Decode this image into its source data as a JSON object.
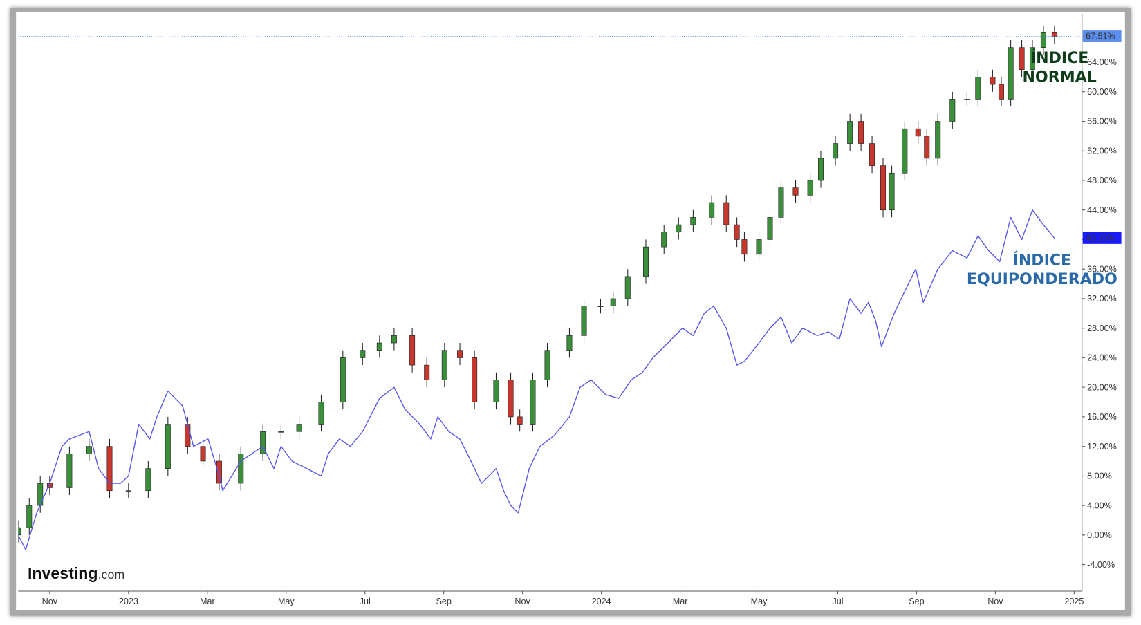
{
  "chart_data": {
    "type": "candlestick-line",
    "logo": {
      "name": "Investing",
      "suffix": ".com"
    },
    "xlim": [
      -0.8,
      26.2
    ],
    "xticks": [
      {
        "value": 0,
        "label": "Nov"
      },
      {
        "value": 2,
        "label": "2023"
      },
      {
        "value": 4,
        "label": "Mar"
      },
      {
        "value": 6,
        "label": "May"
      },
      {
        "value": 8,
        "label": "Jul"
      },
      {
        "value": 10,
        "label": "Sep"
      },
      {
        "value": 12,
        "label": "Nov"
      },
      {
        "value": 14,
        "label": "2024"
      },
      {
        "value": 16,
        "label": "Mar"
      },
      {
        "value": 18,
        "label": "May"
      },
      {
        "value": 20,
        "label": "Jul"
      },
      {
        "value": 22,
        "label": "Sep"
      },
      {
        "value": 24,
        "label": "Nov"
      },
      {
        "value": 26,
        "label": "2025"
      }
    ],
    "ylim": [
      -7.6,
      70.6
    ],
    "yticks": [
      {
        "value": -4,
        "label": "-4.00%"
      },
      {
        "value": 0,
        "label": "0.00%"
      },
      {
        "value": 4,
        "label": "4.00%"
      },
      {
        "value": 8,
        "label": "8.00%"
      },
      {
        "value": 12,
        "label": "12.00%"
      },
      {
        "value": 16,
        "label": "16.00%"
      },
      {
        "value": 20,
        "label": "20.00%"
      },
      {
        "value": 24,
        "label": "24.00%"
      },
      {
        "value": 28,
        "label": "28.00%"
      },
      {
        "value": 32,
        "label": "32.00%"
      },
      {
        "value": 36,
        "label": "36.00%"
      },
      {
        "value": 40,
        "label": "40.00%"
      },
      {
        "value": 44,
        "label": "44.00%"
      },
      {
        "value": 48,
        "label": "48.00%"
      },
      {
        "value": 52,
        "label": "52.00%"
      },
      {
        "value": 56,
        "label": "56.00%"
      },
      {
        "value": 60,
        "label": "60.00%"
      },
      {
        "value": 64,
        "label": "64.00%"
      }
    ],
    "series": [
      {
        "name": "ÍNDICE NORMAL",
        "type": "candlestick",
        "up_color": "#3b8f3b",
        "down_color": "#c8372d",
        "label_color": "#0f3d1a",
        "badge_color": "#5b8def",
        "last_value": {
          "value": 67.51,
          "label": "67.51%"
        },
        "x": [
          -0.8,
          -0.52,
          -0.24,
          0,
          0.5,
          1,
          1.52,
          2,
          2.5,
          3,
          3.5,
          3.89,
          4.3,
          4.85,
          5.41,
          5.87,
          6.33,
          6.89,
          7.44,
          7.94,
          8.37,
          8.74,
          9.2,
          9.57,
          10.02,
          10.41,
          10.78,
          11.33,
          11.7,
          11.93,
          12.26,
          12.63,
          13.19,
          13.56,
          13.98,
          14.3,
          14.67,
          15.13,
          15.59,
          15.96,
          16.33,
          16.8,
          17.17,
          17.44,
          17.63,
          18,
          18.28,
          18.56,
          18.93,
          19.3,
          19.57,
          19.94,
          20.31,
          20.59,
          20.87,
          21.15,
          21.37,
          21.7,
          22.04,
          22.26,
          22.54,
          22.91,
          23.28,
          23.56,
          23.93,
          24.15,
          24.39,
          24.67,
          24.94,
          25.22,
          25.5
        ],
        "open": [
          0,
          1,
          4,
          7,
          6.4,
          11,
          12,
          6,
          6,
          9,
          15,
          12,
          10,
          7,
          11,
          14,
          14,
          15,
          18,
          24,
          25,
          26,
          27,
          23,
          21,
          25,
          24,
          18,
          21,
          16,
          15,
          21,
          25,
          27,
          31,
          31,
          32,
          35,
          39,
          41,
          42,
          43,
          45,
          42,
          40,
          38,
          40,
          43,
          47,
          46,
          48,
          51,
          53,
          56,
          53,
          50,
          44,
          49,
          55,
          54,
          51,
          56,
          59,
          59,
          62,
          61,
          59,
          66,
          63,
          66,
          68
        ],
        "high": [
          2,
          5,
          8,
          8,
          12,
          13,
          13,
          7,
          10,
          16,
          16,
          13,
          11,
          12,
          15,
          15,
          16,
          19,
          25,
          26,
          27,
          28,
          28,
          24,
          26,
          26,
          25,
          22,
          22,
          17,
          22,
          26,
          28,
          32,
          32,
          33,
          36,
          40,
          42,
          43,
          44,
          46,
          46,
          43,
          41,
          41,
          44,
          48,
          48,
          49,
          52,
          54,
          57,
          57,
          54,
          51,
          50,
          56,
          56,
          55,
          57,
          60,
          60,
          63,
          63,
          62,
          67,
          67,
          67,
          69,
          69
        ],
        "low": [
          -1,
          0,
          3,
          5.4,
          5.4,
          10,
          5,
          5,
          5,
          8,
          11,
          9,
          6,
          6,
          10,
          13,
          13,
          14,
          17,
          23,
          24,
          25,
          22,
          20,
          20,
          23,
          17,
          17,
          15,
          14,
          14,
          20,
          24,
          26,
          30,
          30,
          31,
          34,
          38,
          40,
          41,
          42,
          41,
          39,
          37,
          37,
          39,
          42,
          45,
          45,
          47,
          50,
          52,
          52,
          49,
          43,
          43,
          48,
          53,
          50,
          50,
          55,
          58,
          58,
          60,
          58,
          58,
          62,
          62,
          65,
          66.51
        ],
        "close": [
          1,
          4,
          7,
          6.4,
          11,
          12,
          6,
          6,
          9,
          15,
          12,
          10,
          7,
          11,
          14,
          14,
          15,
          18,
          24,
          25,
          26,
          27,
          23,
          21,
          25,
          24,
          18,
          21,
          16,
          15,
          21,
          25,
          27,
          31,
          31,
          32,
          35,
          39,
          41,
          42,
          43,
          45,
          42,
          40,
          38,
          40,
          43,
          47,
          46,
          48,
          51,
          53,
          56,
          53,
          50,
          44,
          49,
          55,
          54,
          51,
          56,
          59,
          59,
          62,
          61,
          59,
          66,
          63,
          66,
          68,
          67.51
        ]
      },
      {
        "name": "ÍNDICE EQUIPONDERADO",
        "type": "line",
        "color": "#5555ee",
        "label_color": "#2a6aa8",
        "badge_color": "#1a1aff",
        "last_value": {
          "value": 40.19,
          "label": "40.19%"
        },
        "x": [
          -0.8,
          -0.61,
          -0.33,
          0,
          0.31,
          0.5,
          1,
          1.24,
          1.52,
          1.8,
          2,
          2.26,
          2.54,
          2.72,
          3,
          3.37,
          3.65,
          4.02,
          4.3,
          4.39,
          4.85,
          5.41,
          5.69,
          5.87,
          6.15,
          6.52,
          6.89,
          7.07,
          7.35,
          7.63,
          7.94,
          8.37,
          8.74,
          9.02,
          9.39,
          9.67,
          9.85,
          10.13,
          10.41,
          10.69,
          10.96,
          11.33,
          11.52,
          11.7,
          11.89,
          12.17,
          12.44,
          12.81,
          13.19,
          13.46,
          13.74,
          14.11,
          14.44,
          14.76,
          15.04,
          15.31,
          15.69,
          16.06,
          16.33,
          16.61,
          16.85,
          17.17,
          17.44,
          17.63,
          18,
          18.28,
          18.56,
          18.83,
          19.11,
          19.48,
          19.76,
          20.04,
          20.31,
          20.59,
          20.78,
          20.96,
          21.11,
          21.43,
          21.7,
          21.98,
          22.17,
          22.54,
          22.91,
          23.28,
          23.56,
          23.83,
          24.11,
          24.39,
          24.67,
          24.94,
          25.22,
          25.5
        ],
        "values": [
          0,
          -2,
          3,
          7,
          12,
          13,
          14,
          9,
          7,
          7,
          8,
          15,
          13,
          16,
          19.5,
          17.5,
          12,
          13,
          8,
          6,
          10,
          12,
          9,
          12,
          10,
          9,
          8,
          11,
          13,
          12,
          14,
          18.5,
          20,
          17,
          15,
          13,
          16,
          14,
          13,
          10,
          7,
          9,
          6,
          4,
          3,
          9,
          12,
          13.5,
          16,
          20,
          21,
          19,
          18.5,
          21,
          22,
          24,
          26,
          28,
          27,
          30,
          31,
          28,
          23,
          23.5,
          26,
          28,
          29.5,
          26,
          28,
          27,
          27.5,
          26.5,
          32,
          30,
          31.5,
          29,
          25.5,
          30,
          33,
          36,
          31.5,
          36,
          38.5,
          37.5,
          40.5,
          38.5,
          37,
          43,
          40,
          44,
          42,
          40.19
        ]
      }
    ]
  }
}
